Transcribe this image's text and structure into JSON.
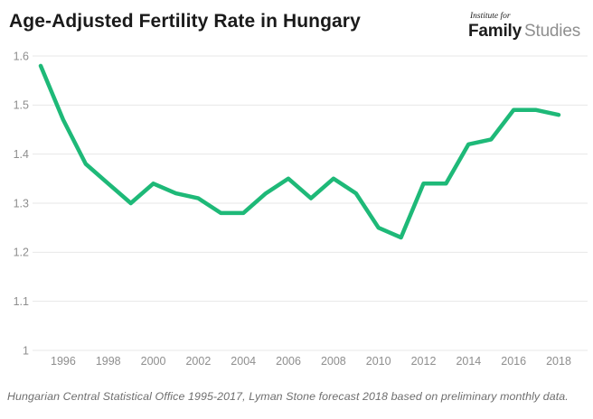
{
  "header": {
    "title": "Age-Adjusted Fertility Rate in Hungary",
    "logo": {
      "top_line": "Institute for",
      "bold_word": "Family",
      "light_word": "Studies"
    }
  },
  "chart_data": {
    "type": "line",
    "title": "Age-Adjusted Fertility Rate in Hungary",
    "series_name": "Age-adjusted fertility rate",
    "x": [
      1995,
      1996,
      1997,
      1998,
      1999,
      2000,
      2001,
      2002,
      2003,
      2004,
      2005,
      2006,
      2007,
      2008,
      2009,
      2010,
      2011,
      2012,
      2013,
      2014,
      2015,
      2016,
      2017,
      2018
    ],
    "values": [
      1.58,
      1.47,
      1.38,
      1.34,
      1.3,
      1.34,
      1.32,
      1.31,
      1.28,
      1.28,
      1.32,
      1.35,
      1.31,
      1.35,
      1.32,
      1.25,
      1.23,
      1.34,
      1.34,
      1.42,
      1.43,
      1.49,
      1.49,
      1.48
    ],
    "xlabel": "",
    "ylabel": "",
    "ylim": [
      1.0,
      1.6
    ],
    "ytick_labels": [
      "1",
      "1.1",
      "1.2",
      "1.3",
      "1.4",
      "1.5",
      "1.6"
    ],
    "xtick_labels": [
      "1996",
      "1998",
      "2000",
      "2002",
      "2004",
      "2006",
      "2008",
      "2010",
      "2012",
      "2014",
      "2016",
      "2018"
    ],
    "grid": true,
    "legend": "none",
    "line_color": "#1eb978"
  },
  "colors": {
    "line": "#1eb978",
    "grid": "#e7e7e7",
    "axis_text": "#8e8e8e",
    "title_text": "#1a1a1a",
    "caption_text": "#6e6e6e"
  },
  "footer": {
    "caption": "Hungarian Central Statistical Office 1995-2017, Lyman Stone forecast 2018 based on preliminary monthly data."
  }
}
